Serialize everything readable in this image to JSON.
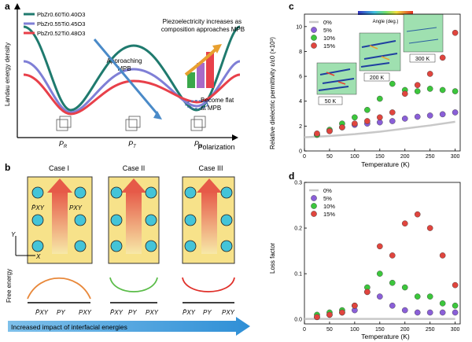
{
  "panel_a": {
    "letter": "a",
    "legend": [
      "PbZr0.60Ti0.40O3",
      "PbZr0.55Ti0.45O3",
      "PbZr0.52Ti0.48O3"
    ],
    "legend_colors": [
      "#1f7a6e",
      "#7f7fd6",
      "#e8404a"
    ],
    "ylabel": "Landau energy density",
    "xlabel": "Polarization",
    "ticks": [
      "PR",
      "PT",
      "PR"
    ],
    "annot_top": "Piezoelectricity increases as composition approaches MPB",
    "annot_approach": "Approaching MPB",
    "annot_flat": "Become flat at MPB"
  },
  "panel_b": {
    "letter": "b",
    "cases": [
      "Case I",
      "Case II",
      "Case III"
    ],
    "ylabel": "Free energy",
    "ticks": [
      "P̄XY",
      "PY",
      "PXY"
    ],
    "labels_P": [
      "P̄XY",
      "PXY"
    ],
    "axis_x": "X",
    "axis_y": "Y",
    "arrow_text": "Increased impact of interfacial energies"
  },
  "panel_c": {
    "letter": "c",
    "ylabel": "Relative dielectric permittivity ε/ε0 (×10³)",
    "xlabel": "Temperature (K)",
    "insets": [
      "50 K",
      "200 K",
      "300 K"
    ],
    "colorbar_label": "Angle (deg.)",
    "colorbar_ticks": [
      "−40",
      "−20",
      "0",
      "20",
      "40"
    ]
  },
  "panel_d": {
    "letter": "d",
    "ylabel": "Loss factor",
    "xlabel": "Temperature (K)"
  },
  "chart_data": [
    {
      "type": "scatter",
      "panel": "c",
      "xlabel": "Temperature (K)",
      "ylabel": "Relative dielectric permittivity ε/ε0 (×10³)",
      "xlim": [
        0,
        310
      ],
      "ylim": [
        0,
        11
      ],
      "xticks": [
        0,
        50,
        100,
        150,
        200,
        250,
        300
      ],
      "yticks": [
        0,
        2,
        4,
        6,
        8,
        10
      ],
      "legend": "top-left",
      "series": [
        {
          "name": "0%",
          "color": "#c8c8c8",
          "kind": "line",
          "x": [
            0,
            50,
            100,
            150,
            200,
            250,
            300
          ],
          "y": [
            1.1,
            1.2,
            1.35,
            1.55,
            1.8,
            2.05,
            2.35
          ]
        },
        {
          "name": "5%",
          "color": "#8a5fd8",
          "x": [
            25,
            50,
            75,
            100,
            125,
            150,
            175,
            200,
            225,
            250,
            275,
            300
          ],
          "y": [
            1.3,
            1.6,
            1.9,
            2.1,
            2.2,
            2.3,
            2.4,
            2.6,
            2.75,
            2.85,
            2.95,
            3.1
          ]
        },
        {
          "name": "10%",
          "color": "#3cc63c",
          "x": [
            25,
            50,
            75,
            100,
            125,
            150,
            175,
            200,
            225,
            250,
            275,
            300
          ],
          "y": [
            1.3,
            1.7,
            2.2,
            2.7,
            3.3,
            4.2,
            5.4,
            4.9,
            4.8,
            5.0,
            4.9,
            4.8
          ]
        },
        {
          "name": "15%",
          "color": "#e0453e",
          "x": [
            25,
            50,
            75,
            100,
            125,
            150,
            175,
            200,
            225,
            250,
            275,
            300
          ],
          "y": [
            1.4,
            1.6,
            1.9,
            2.2,
            2.4,
            2.7,
            3.1,
            4.6,
            5.3,
            6.2,
            7.5,
            9.5
          ]
        }
      ]
    },
    {
      "type": "scatter",
      "panel": "d",
      "xlabel": "Temperature (K)",
      "ylabel": "Loss factor",
      "xlim": [
        0,
        310
      ],
      "ylim": [
        -0.01,
        0.3
      ],
      "xticks": [
        0,
        50,
        100,
        150,
        200,
        250,
        300
      ],
      "yticks": [
        0.0,
        0.1,
        0.2,
        0.3
      ],
      "legend": "top-left",
      "series": [
        {
          "name": "0%",
          "color": "#c8c8c8",
          "kind": "line",
          "x": [
            0,
            300
          ],
          "y": [
            0.001,
            0.001
          ]
        },
        {
          "name": "5%",
          "color": "#8a5fd8",
          "x": [
            25,
            50,
            75,
            100,
            125,
            150,
            175,
            200,
            225,
            250,
            275,
            300
          ],
          "y": [
            0.005,
            0.01,
            0.015,
            0.02,
            0.06,
            0.05,
            0.03,
            0.02,
            0.015,
            0.015,
            0.015,
            0.015
          ]
        },
        {
          "name": "10%",
          "color": "#3cc63c",
          "x": [
            25,
            50,
            75,
            100,
            125,
            150,
            175,
            200,
            225,
            250,
            275,
            300
          ],
          "y": [
            0.01,
            0.015,
            0.02,
            0.03,
            0.07,
            0.1,
            0.08,
            0.07,
            0.05,
            0.05,
            0.035,
            0.03
          ]
        },
        {
          "name": "15%",
          "color": "#e0453e",
          "x": [
            25,
            50,
            75,
            100,
            125,
            150,
            175,
            200,
            225,
            250,
            275,
            300
          ],
          "y": [
            0.005,
            0.01,
            0.015,
            0.03,
            0.06,
            0.16,
            0.14,
            0.21,
            0.23,
            0.2,
            0.14,
            0.075
          ]
        }
      ]
    }
  ]
}
